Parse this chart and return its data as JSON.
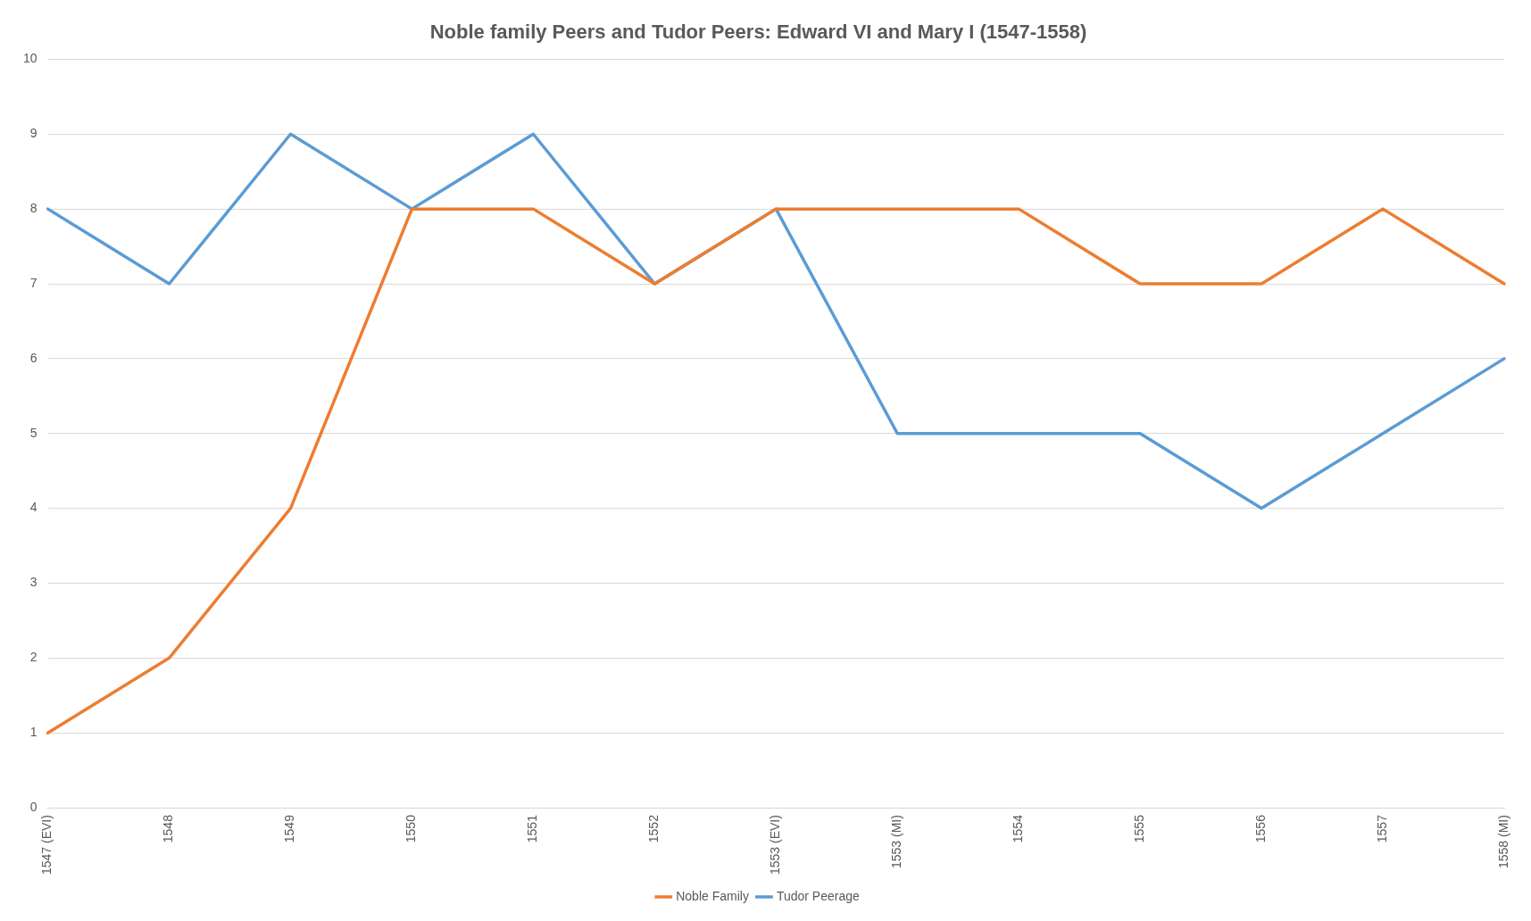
{
  "chart_data": {
    "type": "line",
    "title": "Noble family Peers and Tudor Peers: Edward VI and Mary I (1547-1558)",
    "categories": [
      "1547 (EVI)",
      "1548",
      "1549",
      "1550",
      "1551",
      "1552",
      "1553 (EVI)",
      "1553 (MI)",
      "1554",
      "1555",
      "1556",
      "1557",
      "1558 (MI)"
    ],
    "series": [
      {
        "name": "Noble Family",
        "color": "#ed7d31",
        "values": [
          1,
          2,
          4,
          8,
          8,
          7,
          8,
          8,
          8,
          7,
          7,
          8,
          7
        ]
      },
      {
        "name": "Tudor Peerage",
        "color": "#5b9bd5",
        "values": [
          8,
          7,
          9,
          8,
          9,
          7,
          8,
          5,
          5,
          5,
          4,
          5,
          6
        ]
      }
    ],
    "ylim": [
      0,
      10
    ],
    "yticks": [
      0,
      1,
      2,
      3,
      4,
      5,
      6,
      7,
      8,
      9,
      10
    ],
    "grid": "y",
    "legend": "bottom",
    "marker": "none",
    "line_style": "solid"
  }
}
